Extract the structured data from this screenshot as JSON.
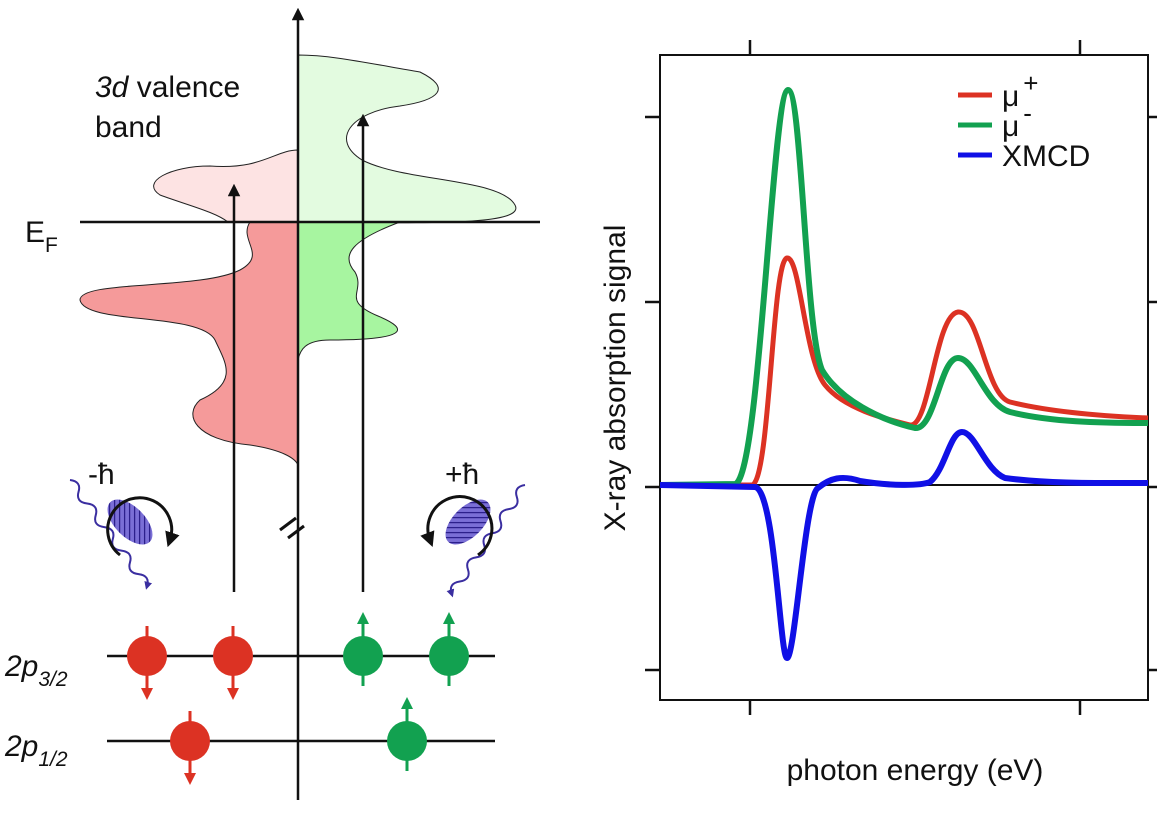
{
  "left_panel": {
    "band_label": [
      "3d",
      "valence",
      "band"
    ],
    "fermi_level": {
      "main": "E",
      "sub": "F"
    },
    "photons": [
      "-ħ",
      "+ħ"
    ],
    "levels": [
      {
        "main": "2p",
        "sub": "3/2"
      },
      {
        "main": "2p",
        "sub": "1/2"
      }
    ]
  },
  "right_panel": {
    "legend": [
      {
        "main": "μ",
        "sup": "+",
        "color": "#dc3223"
      },
      {
        "main": "μ",
        "sup": "-",
        "color": "#12a150"
      },
      {
        "main": "XMCD",
        "color": "#1010e6"
      }
    ],
    "y_label": "X-ray absorption signal",
    "x_label": "photon energy (eV)"
  }
}
